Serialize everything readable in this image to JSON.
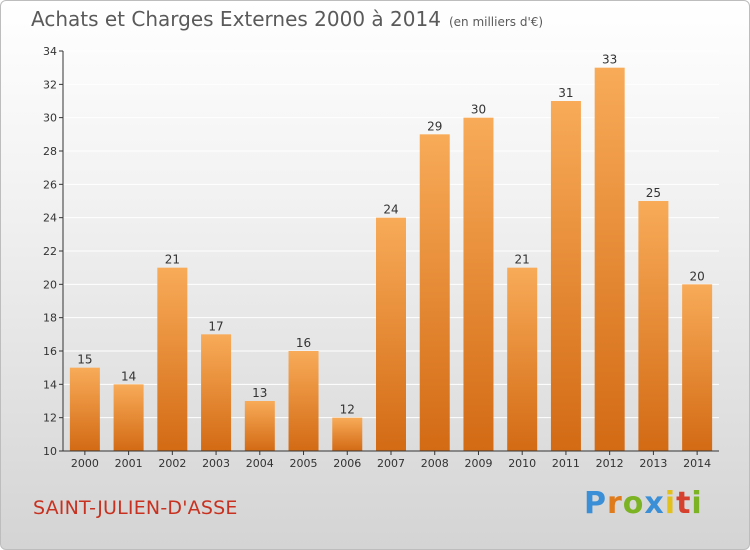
{
  "header": {
    "title": "Achats et Charges Externes 2000 à 2014",
    "subtitle": "(en milliers d'€)"
  },
  "footer": {
    "commune": "SAINT-JULIEN-D'ASSE",
    "logo_text": "Proxiti",
    "logo_colors": [
      "#3b8fd6",
      "#e07b1c",
      "#7bb324",
      "#3b8fd6",
      "#e2c21a",
      "#d6402e",
      "#7bb324"
    ]
  },
  "colors": {
    "bar_top": "#f8ab58",
    "bar_bottom": "#d36a14",
    "axis": "#333333",
    "grid": "#ffffff"
  },
  "chart_data": {
    "type": "bar",
    "title": "Achats et Charges Externes 2000 à 2014",
    "subtitle": "(en milliers d'€)",
    "categories": [
      "2000",
      "2001",
      "2002",
      "2003",
      "2004",
      "2005",
      "2006",
      "2007",
      "2008",
      "2009",
      "2010",
      "2011",
      "2012",
      "2013",
      "2014"
    ],
    "values": [
      15,
      14,
      21,
      17,
      13,
      16,
      12,
      24,
      29,
      30,
      21,
      31,
      33,
      25,
      20
    ],
    "ylim": [
      10,
      34
    ],
    "yticks": [
      10,
      12,
      14,
      16,
      18,
      20,
      22,
      24,
      26,
      28,
      30,
      32,
      34
    ],
    "grid": true,
    "data_labels": true
  }
}
